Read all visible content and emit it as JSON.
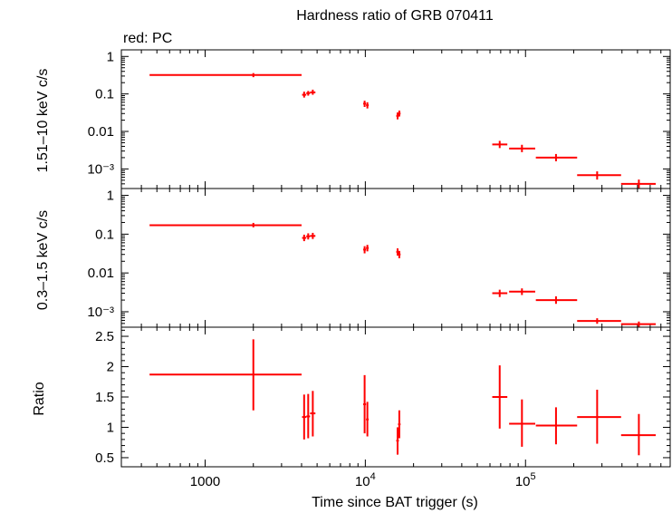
{
  "title": "Hardness ratio of GRB 070411",
  "legend": "red: PC",
  "series_color": "#ff0000",
  "chart_data": [
    {
      "type": "scatter",
      "panel": "top",
      "ylabel": "1.51–10 keV c/s",
      "yscale": "log",
      "xscale": "log",
      "ylim": [
        0.0003,
        1.5
      ],
      "yticks": [
        {
          "v": 1,
          "label": "1"
        },
        {
          "v": 0.1,
          "label": "0.1"
        },
        {
          "v": 0.01,
          "label": "0.01"
        },
        {
          "v": 0.001,
          "label": "10⁻³"
        }
      ],
      "points": [
        {
          "x": 2000,
          "xlo": 450,
          "xhi": 4000,
          "y": 0.32,
          "ylo": 0.28,
          "yhi": 0.36
        },
        {
          "x": 4150,
          "xlo": 4030,
          "xhi": 4280,
          "y": 0.095,
          "ylo": 0.08,
          "yhi": 0.115
        },
        {
          "x": 4400,
          "xlo": 4280,
          "xhi": 4520,
          "y": 0.105,
          "ylo": 0.09,
          "yhi": 0.12
        },
        {
          "x": 4700,
          "xlo": 4520,
          "xhi": 4880,
          "y": 0.11,
          "ylo": 0.095,
          "yhi": 0.13
        },
        {
          "x": 9900,
          "xlo": 9700,
          "xhi": 10100,
          "y": 0.055,
          "ylo": 0.045,
          "yhi": 0.066
        },
        {
          "x": 10300,
          "xlo": 10100,
          "xhi": 10500,
          "y": 0.05,
          "ylo": 0.041,
          "yhi": 0.06
        },
        {
          "x": 15900,
          "xlo": 15600,
          "xhi": 16200,
          "y": 0.026,
          "ylo": 0.021,
          "yhi": 0.032
        },
        {
          "x": 16300,
          "xlo": 16000,
          "xhi": 16600,
          "y": 0.03,
          "ylo": 0.025,
          "yhi": 0.036
        },
        {
          "x": 69000,
          "xlo": 62000,
          "xhi": 77000,
          "y": 0.0045,
          "ylo": 0.0036,
          "yhi": 0.0056
        },
        {
          "x": 95000,
          "xlo": 79000,
          "xhi": 115000,
          "y": 0.0035,
          "ylo": 0.0028,
          "yhi": 0.0044
        },
        {
          "x": 155000,
          "xlo": 116000,
          "xhi": 210000,
          "y": 0.002,
          "ylo": 0.0016,
          "yhi": 0.0025
        },
        {
          "x": 280000,
          "xlo": 210000,
          "xhi": 395000,
          "y": 0.00068,
          "ylo": 0.00052,
          "yhi": 0.00086
        },
        {
          "x": 510000,
          "xlo": 395000,
          "xhi": 650000,
          "y": 0.0004,
          "ylo": 0.0003,
          "yhi": 0.00052
        }
      ]
    },
    {
      "type": "scatter",
      "panel": "middle",
      "ylabel": "0.3–1.5 keV c/s",
      "yscale": "log",
      "xscale": "log",
      "ylim": [
        0.0004,
        1.5
      ],
      "yticks": [
        {
          "v": 1,
          "label": "1"
        },
        {
          "v": 0.1,
          "label": "0.1"
        },
        {
          "v": 0.01,
          "label": "0.01"
        },
        {
          "v": 0.001,
          "label": "10⁻³"
        }
      ],
      "points": [
        {
          "x": 2000,
          "xlo": 450,
          "xhi": 4000,
          "y": 0.17,
          "ylo": 0.15,
          "yhi": 0.195
        },
        {
          "x": 4150,
          "xlo": 4030,
          "xhi": 4280,
          "y": 0.08,
          "ylo": 0.066,
          "yhi": 0.097
        },
        {
          "x": 4400,
          "xlo": 4280,
          "xhi": 4520,
          "y": 0.088,
          "ylo": 0.073,
          "yhi": 0.105
        },
        {
          "x": 4700,
          "xlo": 4520,
          "xhi": 4880,
          "y": 0.09,
          "ylo": 0.075,
          "yhi": 0.108
        },
        {
          "x": 9900,
          "xlo": 9700,
          "xhi": 10100,
          "y": 0.04,
          "ylo": 0.032,
          "yhi": 0.049
        },
        {
          "x": 10300,
          "xlo": 10100,
          "xhi": 10500,
          "y": 0.044,
          "ylo": 0.036,
          "yhi": 0.053
        },
        {
          "x": 15900,
          "xlo": 15600,
          "xhi": 16200,
          "y": 0.035,
          "ylo": 0.028,
          "yhi": 0.043
        },
        {
          "x": 16300,
          "xlo": 16000,
          "xhi": 16600,
          "y": 0.03,
          "ylo": 0.024,
          "yhi": 0.037
        },
        {
          "x": 69000,
          "xlo": 62000,
          "xhi": 77000,
          "y": 0.003,
          "ylo": 0.0024,
          "yhi": 0.0037
        },
        {
          "x": 95000,
          "xlo": 79000,
          "xhi": 115000,
          "y": 0.0033,
          "ylo": 0.0027,
          "yhi": 0.004
        },
        {
          "x": 155000,
          "xlo": 116000,
          "xhi": 210000,
          "y": 0.002,
          "ylo": 0.0016,
          "yhi": 0.0025
        },
        {
          "x": 280000,
          "xlo": 210000,
          "xhi": 395000,
          "y": 0.00058,
          "ylo": 0.00049,
          "yhi": 0.00068
        },
        {
          "x": 510000,
          "xlo": 395000,
          "xhi": 650000,
          "y": 0.00048,
          "ylo": 0.00041,
          "yhi": 0.00056
        }
      ]
    },
    {
      "type": "scatter",
      "panel": "bottom",
      "ylabel": "Ratio",
      "xlabel": "Time since BAT trigger (s)",
      "yscale": "linear",
      "xscale": "log",
      "xlim": [
        300,
        800000
      ],
      "ylim": [
        0.35,
        2.65
      ],
      "yticks": [
        {
          "v": 0.5,
          "label": "0.5"
        },
        {
          "v": 1,
          "label": "1"
        },
        {
          "v": 1.5,
          "label": "1.5"
        },
        {
          "v": 2,
          "label": "2"
        },
        {
          "v": 2.5,
          "label": "2.5"
        }
      ],
      "xticks": [
        {
          "v": 1000,
          "label": "1000",
          "exp": ""
        },
        {
          "v": 10000,
          "label": "10",
          "exp": "4"
        },
        {
          "v": 100000,
          "label": "10",
          "exp": "5"
        }
      ],
      "points": [
        {
          "x": 2000,
          "xlo": 450,
          "xhi": 4000,
          "y": 1.87,
          "ylo": 1.28,
          "yhi": 2.45
        },
        {
          "x": 4150,
          "xlo": 4030,
          "xhi": 4280,
          "y": 1.17,
          "ylo": 0.8,
          "yhi": 1.54
        },
        {
          "x": 4400,
          "xlo": 4280,
          "xhi": 4520,
          "y": 1.18,
          "ylo": 0.82,
          "yhi": 1.55
        },
        {
          "x": 4700,
          "xlo": 4520,
          "xhi": 4880,
          "y": 1.23,
          "ylo": 0.85,
          "yhi": 1.6
        },
        {
          "x": 9900,
          "xlo": 9700,
          "xhi": 10100,
          "y": 1.38,
          "ylo": 0.9,
          "yhi": 1.86
        },
        {
          "x": 10300,
          "xlo": 10100,
          "xhi": 10500,
          "y": 1.13,
          "ylo": 0.85,
          "yhi": 1.42
        },
        {
          "x": 15900,
          "xlo": 15600,
          "xhi": 16200,
          "y": 0.78,
          "ylo": 0.55,
          "yhi": 1.0
        },
        {
          "x": 16300,
          "xlo": 16000,
          "xhi": 16600,
          "y": 1.05,
          "ylo": 0.82,
          "yhi": 1.28
        },
        {
          "x": 69000,
          "xlo": 62000,
          "xhi": 77000,
          "y": 1.5,
          "ylo": 0.98,
          "yhi": 2.02
        },
        {
          "x": 95000,
          "xlo": 79000,
          "xhi": 115000,
          "y": 1.06,
          "ylo": 0.68,
          "yhi": 1.46
        },
        {
          "x": 155000,
          "xlo": 116000,
          "xhi": 210000,
          "y": 1.03,
          "ylo": 0.72,
          "yhi": 1.33
        },
        {
          "x": 280000,
          "xlo": 210000,
          "xhi": 395000,
          "y": 1.17,
          "ylo": 0.73,
          "yhi": 1.62
        },
        {
          "x": 510000,
          "xlo": 395000,
          "xhi": 650000,
          "y": 0.87,
          "ylo": 0.54,
          "yhi": 1.22
        }
      ]
    }
  ]
}
